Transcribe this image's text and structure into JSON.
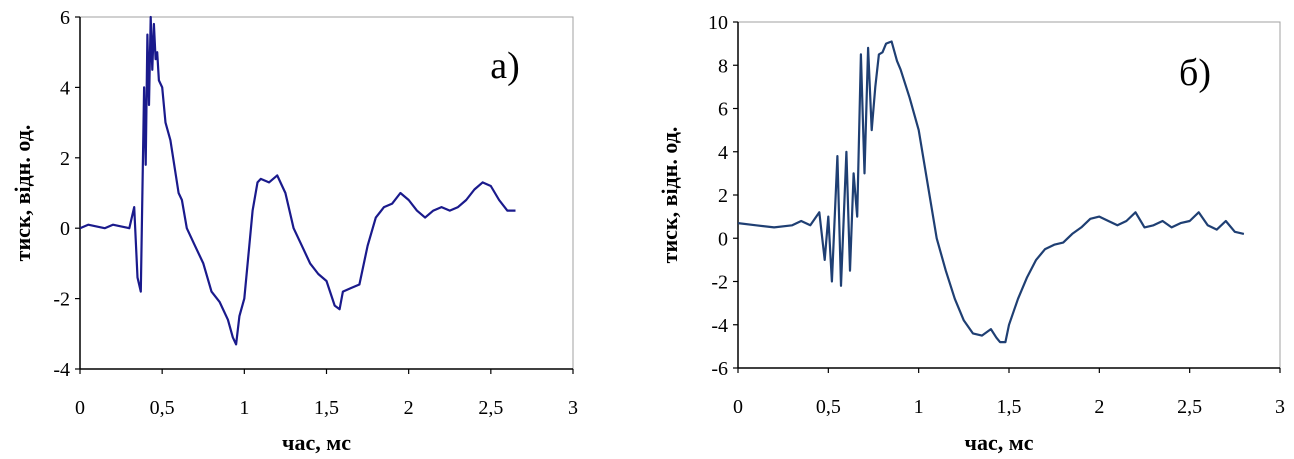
{
  "chart_data": [
    {
      "type": "line",
      "title": "",
      "panel_label": "а)",
      "xlabel": "час, мс",
      "ylabel": "тиск, відн. од.",
      "xlim": [
        0,
        3
      ],
      "ylim": [
        -4,
        6
      ],
      "xticks": [
        0,
        0.5,
        1,
        1.5,
        2,
        2.5,
        3
      ],
      "xtick_labels": [
        "0",
        "0,5",
        "1",
        "1,5",
        "2",
        "2,5",
        "3"
      ],
      "yticks": [
        -4,
        -2,
        0,
        2,
        4,
        6
      ],
      "ytick_labels": [
        "-4",
        "-2",
        "0",
        "2",
        "4",
        "6"
      ],
      "grid": false,
      "color": "#1a1a8c",
      "series": [
        {
          "x": [
            0,
            0.05,
            0.1,
            0.15,
            0.2,
            0.25,
            0.3,
            0.33,
            0.35,
            0.37,
            0.39,
            0.4,
            0.41,
            0.42,
            0.43,
            0.44,
            0.45,
            0.46,
            0.47,
            0.48,
            0.5,
            0.52,
            0.55,
            0.6,
            0.62,
            0.65,
            0.7,
            0.75,
            0.8,
            0.85,
            0.9,
            0.93,
            0.95,
            0.97,
            1.0,
            1.03,
            1.05,
            1.08,
            1.1,
            1.15,
            1.2,
            1.25,
            1.3,
            1.35,
            1.4,
            1.45,
            1.5,
            1.55,
            1.58,
            1.6,
            1.65,
            1.7,
            1.75,
            1.8,
            1.85,
            1.9,
            1.95,
            2.0,
            2.05,
            2.1,
            2.15,
            2.2,
            2.25,
            2.3,
            2.35,
            2.4,
            2.45,
            2.5,
            2.55,
            2.6,
            2.65
          ],
          "y": [
            0,
            0.1,
            0.05,
            0.0,
            0.1,
            0.05,
            0.0,
            0.6,
            -1.4,
            -1.8,
            4.0,
            1.8,
            5.5,
            3.5,
            6.0,
            4.5,
            5.8,
            4.8,
            5.0,
            4.2,
            4.0,
            3.0,
            2.5,
            1.0,
            0.8,
            0.0,
            -0.5,
            -1.0,
            -1.8,
            -2.1,
            -2.6,
            -3.1,
            -3.3,
            -2.5,
            -2.0,
            -0.5,
            0.5,
            1.3,
            1.4,
            1.3,
            1.5,
            1.0,
            0.0,
            -0.5,
            -1.0,
            -1.3,
            -1.5,
            -2.2,
            -2.3,
            -1.8,
            -1.7,
            -1.6,
            -0.5,
            0.3,
            0.6,
            0.7,
            1.0,
            0.8,
            0.5,
            0.3,
            0.5,
            0.6,
            0.5,
            0.6,
            0.8,
            1.1,
            1.3,
            1.2,
            0.8,
            0.5,
            0.5
          ]
        }
      ]
    },
    {
      "type": "line",
      "title": "",
      "panel_label": "б)",
      "xlabel": "час, мс",
      "ylabel": "тиск, відн. од.",
      "xlim": [
        0,
        3
      ],
      "ylim": [
        -6,
        10
      ],
      "xticks": [
        0,
        0.5,
        1,
        1.5,
        2,
        2.5,
        3
      ],
      "xtick_labels": [
        "0",
        "0,5",
        "1",
        "1,5",
        "2",
        "2,5",
        "3"
      ],
      "yticks": [
        -6,
        -4,
        -2,
        0,
        2,
        4,
        6,
        8,
        10
      ],
      "ytick_labels": [
        "-6",
        "-4",
        "-2",
        "0",
        "2",
        "4",
        "6",
        "8",
        "10"
      ],
      "grid": false,
      "color": "#1f3f73",
      "series": [
        {
          "x": [
            0,
            0.1,
            0.2,
            0.3,
            0.35,
            0.4,
            0.45,
            0.48,
            0.5,
            0.52,
            0.55,
            0.57,
            0.6,
            0.62,
            0.64,
            0.66,
            0.68,
            0.7,
            0.72,
            0.74,
            0.76,
            0.78,
            0.8,
            0.82,
            0.85,
            0.88,
            0.9,
            0.95,
            1.0,
            1.05,
            1.1,
            1.15,
            1.2,
            1.25,
            1.3,
            1.35,
            1.4,
            1.43,
            1.45,
            1.48,
            1.5,
            1.55,
            1.6,
            1.65,
            1.7,
            1.75,
            1.8,
            1.85,
            1.9,
            1.95,
            2.0,
            2.05,
            2.1,
            2.15,
            2.2,
            2.25,
            2.3,
            2.35,
            2.4,
            2.45,
            2.5,
            2.55,
            2.6,
            2.65,
            2.7,
            2.75,
            2.8
          ],
          "y": [
            0.7,
            0.6,
            0.5,
            0.6,
            0.8,
            0.6,
            1.2,
            -1.0,
            1.0,
            -2.0,
            3.8,
            -2.2,
            4.0,
            -1.5,
            3.0,
            1.0,
            8.5,
            3.0,
            8.8,
            5.0,
            7.0,
            8.5,
            8.6,
            9.0,
            9.1,
            8.2,
            7.8,
            6.5,
            5.0,
            2.5,
            0.0,
            -1.5,
            -2.8,
            -3.8,
            -4.4,
            -4.5,
            -4.2,
            -4.6,
            -4.8,
            -4.8,
            -4.0,
            -2.8,
            -1.8,
            -1.0,
            -0.5,
            -0.3,
            -0.2,
            0.2,
            0.5,
            0.9,
            1.0,
            0.8,
            0.6,
            0.8,
            1.2,
            0.5,
            0.6,
            0.8,
            0.5,
            0.7,
            0.8,
            1.2,
            0.6,
            0.4,
            0.8,
            0.3,
            0.2
          ]
        }
      ]
    }
  ]
}
